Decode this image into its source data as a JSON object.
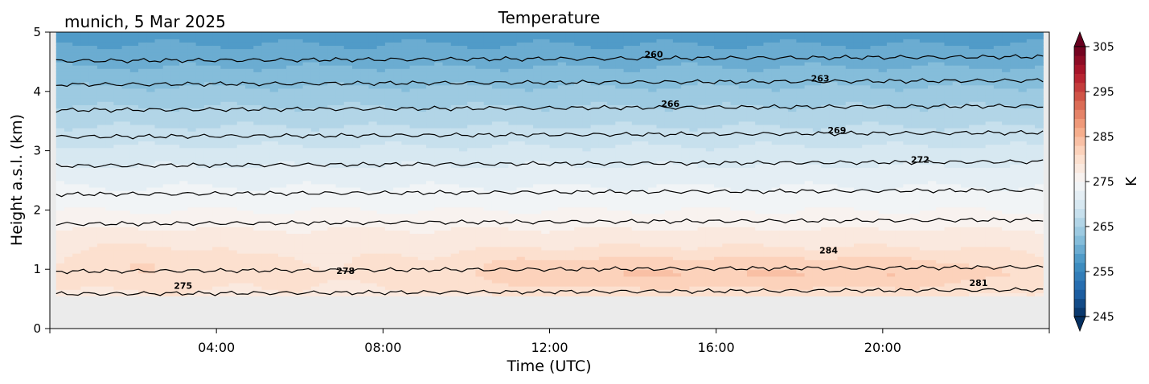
{
  "chart_data": {
    "type": "heatmap",
    "title": "Temperature",
    "subtitle": "munich, 5 Mar 2025",
    "xlabel": "Time (UTC)",
    "ylabel": "Height a.s.l. (km)",
    "xlim_hours": [
      0,
      24
    ],
    "ylim_km": [
      0,
      5
    ],
    "x_ticks": [
      {
        "hour": 4,
        "label": "04:00"
      },
      {
        "hour": 8,
        "label": "08:00"
      },
      {
        "hour": 12,
        "label": "12:00"
      },
      {
        "hour": 16,
        "label": "16:00"
      },
      {
        "hour": 20,
        "label": "20:00"
      }
    ],
    "y_ticks": [
      {
        "value": 0,
        "label": "0"
      },
      {
        "value": 1,
        "label": "1"
      },
      {
        "value": 2,
        "label": "2"
      },
      {
        "value": 3,
        "label": "3"
      },
      {
        "value": 4,
        "label": "4"
      },
      {
        "value": 5,
        "label": "5"
      }
    ],
    "data_extent": {
      "hour_start": 0.15,
      "hour_end": 23.85,
      "height_min_km": 0.55
    },
    "missing_color": "#ebebeb",
    "colorbar": {
      "label": "K",
      "vmin": 245,
      "vmax": 305,
      "levels": 30,
      "ticks": [
        {
          "value": 245,
          "label": "245"
        },
        {
          "value": 255,
          "label": "255"
        },
        {
          "value": 265,
          "label": "265"
        },
        {
          "value": 275,
          "label": "275"
        },
        {
          "value": 285,
          "label": "285"
        },
        {
          "value": 295,
          "label": "295"
        },
        {
          "value": 305,
          "label": "305"
        }
      ],
      "colormap": [
        "#053061",
        "#2166ac",
        "#4393c3",
        "#92c5de",
        "#d1e5f0",
        "#f7f7f7",
        "#fddbc7",
        "#f4a582",
        "#d6604d",
        "#b2182b",
        "#67001f"
      ]
    },
    "profile": {
      "heights_km": [
        0.55,
        0.9,
        1.2,
        1.6,
        2.0,
        2.5,
        3.0,
        3.5,
        4.0,
        4.5,
        5.0
      ],
      "temperature_k": [
        278.5,
        279.5,
        279.0,
        277.5,
        275.0,
        272.5,
        269.5,
        266.5,
        263.5,
        260.5,
        258.0
      ]
    },
    "warm_cores": [
      {
        "hour_start": 0.2,
        "hour_end": 4.6,
        "height_km": 1.1,
        "anomaly_k": 1.5
      },
      {
        "hour_start": 9.0,
        "hour_end": 23.8,
        "height_km": 0.95,
        "anomaly_k": 3.5
      }
    ],
    "contours": [
      {
        "level": 260,
        "height_km": 4.55,
        "label_hour": 14.5,
        "label": "260"
      },
      {
        "level": 263,
        "height_km": 4.15,
        "label_hour": 18.5,
        "label": "263"
      },
      {
        "level": 266,
        "height_km": 3.72,
        "label_hour": 14.9,
        "label": "266"
      },
      {
        "level": 269,
        "height_km": 3.27,
        "label_hour": 18.9,
        "label": "269"
      },
      {
        "level": 272,
        "height_km": 2.78,
        "label_hour": 20.9,
        "label": "272"
      },
      {
        "level": 275,
        "height_km": 2.3,
        "label_hour": 3.2,
        "label": "275",
        "label_height_km": 0.65
      },
      {
        "level": 278,
        "height_km": 1.8,
        "label_hour": 7.1,
        "label": "278",
        "label_height_km": 0.9
      },
      {
        "level": 281,
        "height_km": 0.62,
        "label_hour": 22.3,
        "label": "281",
        "label_height_km": 0.7
      },
      {
        "level": 284,
        "height_km": 1.0,
        "label_hour": 18.7,
        "label": "284",
        "label_height_km": 1.25
      }
    ]
  }
}
